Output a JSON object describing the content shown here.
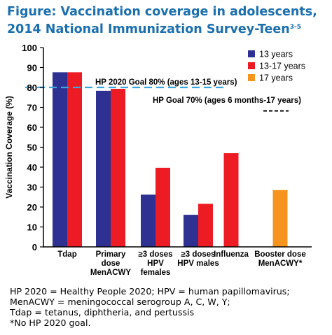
{
  "title": {
    "line1": "Figure:  Vaccination coverage in adolescents,",
    "line2": "2014 National Immunization Survey-Teen",
    "sup": "3-5"
  },
  "footnote": [
    "HP 2020 = Healthy People 2020; HPV = human papillomavirus;",
    "MenACWY = meningococcal serogroup A, C, W, Y;",
    "Tdap = tetanus, diphtheria, and pertussis",
    "*No HP 2020 goal."
  ],
  "colors": {
    "13 years": "#2e3192",
    "13-17 years": "#ed1c24",
    "17 years": "#f7941d",
    "hp2020_line": "#3aa6e0",
    "hp70_line": "#231f20",
    "title": "#1b6fae"
  },
  "chart_data": {
    "type": "bar",
    "title": "",
    "xlabel": "",
    "ylabel": "Vaccination Coverage (%)",
    "ylim": [
      0,
      100
    ],
    "yticks": [
      "0",
      "10",
      "20",
      "30",
      "40",
      "50",
      "60",
      "70",
      "80",
      "90",
      "100"
    ],
    "categories": [
      [
        "Tdap"
      ],
      [
        "Primary",
        "dose",
        "MenACWY"
      ],
      [
        "≥3 doses",
        "HPV",
        "females"
      ],
      [
        "≥3 doses",
        "HPV males"
      ],
      [
        "Influenza"
      ],
      [
        "Booster dose",
        "MenACWY*"
      ]
    ],
    "series": [
      {
        "name": "13 years",
        "values": [
          87.6,
          78.3,
          26.2,
          16.1,
          null,
          null
        ]
      },
      {
        "name": "13-17 years",
        "values": [
          87.6,
          79.3,
          39.7,
          21.6,
          47.0,
          null
        ]
      },
      {
        "name": "17 years",
        "values": [
          null,
          null,
          null,
          null,
          null,
          28.5
        ]
      }
    ],
    "reference_lines": [
      {
        "label": "HP 2020 Goal 80% (ages 13-15 years)",
        "value": 80
      },
      {
        "label": "HP Goal 70% (ages 6 months-17 years)",
        "value": 70
      }
    ],
    "legend": "top-right",
    "grid": false
  }
}
